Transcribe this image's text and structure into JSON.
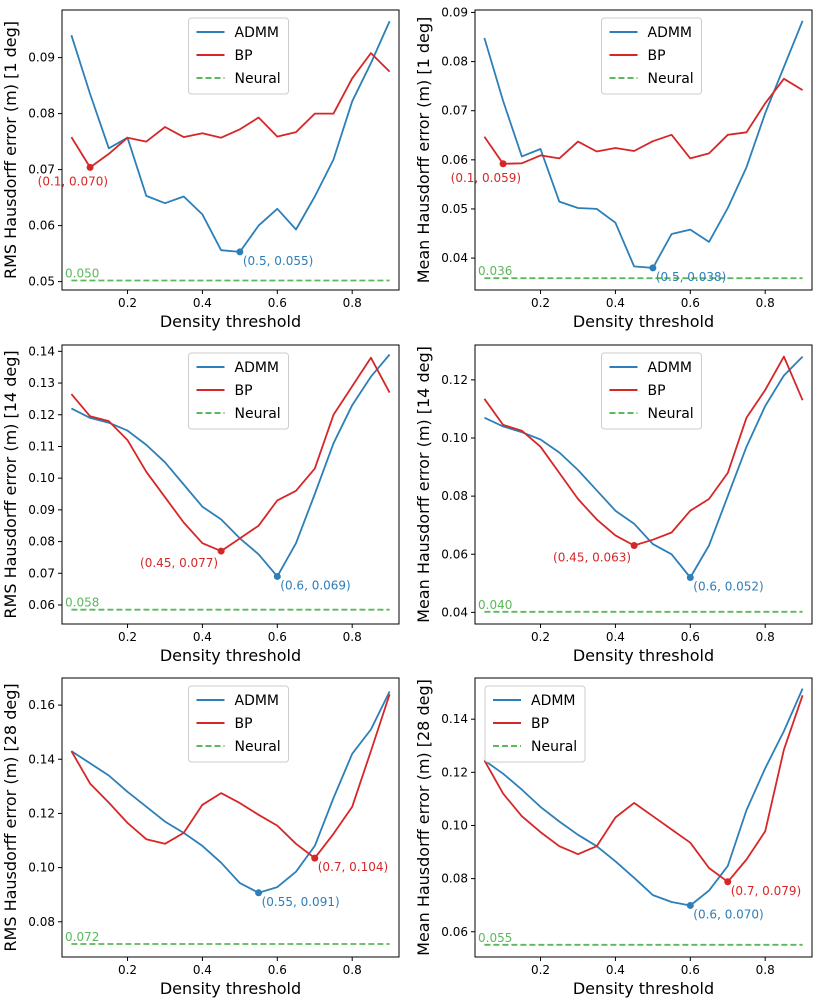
{
  "xlabel": "Density threshold",
  "colors": {
    "admm": "#2c7fb8",
    "bp": "#d62728",
    "neural": "#5cb85c"
  },
  "chart_data": [
    {
      "type": "line",
      "ylabel": "RMS Hausdorff error (m) [1 deg]",
      "xlim": [
        0.025,
        0.925
      ],
      "ylim": [
        0.0485,
        0.0985
      ],
      "xticks": [
        {
          "v": 0.2,
          "label": "0.2"
        },
        {
          "v": 0.4,
          "label": "0.4"
        },
        {
          "v": 0.6,
          "label": "0.6"
        },
        {
          "v": 0.8,
          "label": "0.8"
        }
      ],
      "yticks": [
        {
          "v": 0.05,
          "label": "0.05"
        },
        {
          "v": 0.06,
          "label": "0.06"
        },
        {
          "v": 0.07,
          "label": "0.07"
        },
        {
          "v": 0.08,
          "label": "0.08"
        },
        {
          "v": 0.09,
          "label": "0.09"
        }
      ],
      "legend_pos": "top-center",
      "x": [
        0.05,
        0.1,
        0.15,
        0.2,
        0.25,
        0.3,
        0.35,
        0.4,
        0.45,
        0.5,
        0.55,
        0.6,
        0.65,
        0.7,
        0.75,
        0.8,
        0.85,
        0.9
      ],
      "series": [
        {
          "name": "ADMM",
          "color_key": "admm",
          "values": [
            0.094,
            0.0835,
            0.0738,
            0.0757,
            0.0653,
            0.064,
            0.0652,
            0.062,
            0.0556,
            0.0553,
            0.06,
            0.063,
            0.0593,
            0.0652,
            0.0718,
            0.0822,
            0.089,
            0.0965
          ]
        },
        {
          "name": "BP",
          "color_key": "bp",
          "values": [
            0.0758,
            0.0704,
            0.0728,
            0.0757,
            0.075,
            0.0776,
            0.0758,
            0.0765,
            0.0757,
            0.0772,
            0.0793,
            0.0759,
            0.0767,
            0.08,
            0.08,
            0.0863,
            0.0908,
            0.0875
          ]
        },
        {
          "name": "Neural",
          "color_key": "neural",
          "dashed": true,
          "values": [
            0.0502,
            0.0502,
            0.0502,
            0.0502,
            0.0502,
            0.0502,
            0.0502,
            0.0502,
            0.0502,
            0.0502,
            0.0502,
            0.0502,
            0.0502,
            0.0502,
            0.0502,
            0.0502,
            0.0502,
            0.0502
          ]
        }
      ],
      "annotations": [
        {
          "series": "BP",
          "x": 0.1,
          "y": 0.0704,
          "label": "(0.1, 0.070)",
          "anchor": "below-left"
        },
        {
          "series": "ADMM",
          "x": 0.5,
          "y": 0.0553,
          "label": "(0.5, 0.055)",
          "anchor": "right-below"
        },
        {
          "series": "Neural",
          "x": 0.05,
          "y": 0.0502,
          "label": "0.050",
          "anchor": "above-left"
        }
      ]
    },
    {
      "type": "line",
      "ylabel": "Mean Hausdorff error (m) [1 deg]",
      "xlim": [
        0.025,
        0.925
      ],
      "ylim": [
        0.0335,
        0.0905
      ],
      "xticks": [
        {
          "v": 0.2,
          "label": "0.2"
        },
        {
          "v": 0.4,
          "label": "0.4"
        },
        {
          "v": 0.6,
          "label": "0.6"
        },
        {
          "v": 0.8,
          "label": "0.8"
        }
      ],
      "yticks": [
        {
          "v": 0.04,
          "label": "0.04"
        },
        {
          "v": 0.05,
          "label": "0.05"
        },
        {
          "v": 0.06,
          "label": "0.06"
        },
        {
          "v": 0.07,
          "label": "0.07"
        },
        {
          "v": 0.08,
          "label": "0.08"
        },
        {
          "v": 0.09,
          "label": "0.09"
        }
      ],
      "legend_pos": "top-center",
      "x": [
        0.05,
        0.1,
        0.15,
        0.2,
        0.25,
        0.3,
        0.35,
        0.4,
        0.45,
        0.5,
        0.55,
        0.6,
        0.65,
        0.7,
        0.75,
        0.8,
        0.85,
        0.9
      ],
      "series": [
        {
          "name": "ADMM",
          "color_key": "admm",
          "values": [
            0.0848,
            0.072,
            0.0607,
            0.0622,
            0.0515,
            0.0502,
            0.05,
            0.0472,
            0.0383,
            0.038,
            0.0449,
            0.0458,
            0.0433,
            0.0502,
            0.0585,
            0.0695,
            0.0789,
            0.0883
          ]
        },
        {
          "name": "BP",
          "color_key": "bp",
          "values": [
            0.0647,
            0.0592,
            0.0593,
            0.0609,
            0.0603,
            0.0637,
            0.0617,
            0.0624,
            0.0618,
            0.0638,
            0.0651,
            0.0603,
            0.0613,
            0.0651,
            0.0656,
            0.0715,
            0.0765,
            0.0742
          ]
        },
        {
          "name": "Neural",
          "color_key": "neural",
          "dashed": true,
          "values": [
            0.0359,
            0.0359,
            0.0359,
            0.0359,
            0.0359,
            0.0359,
            0.0359,
            0.0359,
            0.0359,
            0.0359,
            0.0359,
            0.0359,
            0.0359,
            0.0359,
            0.0359,
            0.0359,
            0.0359,
            0.0359
          ]
        }
      ],
      "annotations": [
        {
          "series": "BP",
          "x": 0.1,
          "y": 0.0592,
          "label": "(0.1, 0.059)",
          "anchor": "below-left"
        },
        {
          "series": "ADMM",
          "x": 0.5,
          "y": 0.038,
          "label": "(0.5, 0.038)",
          "anchor": "right-below"
        },
        {
          "series": "Neural",
          "x": 0.05,
          "y": 0.0359,
          "label": "0.036",
          "anchor": "above-left"
        }
      ]
    },
    {
      "type": "line",
      "ylabel": "RMS Hausdorff error (m) [14 deg]",
      "xlim": [
        0.025,
        0.925
      ],
      "ylim": [
        0.054,
        0.142
      ],
      "xticks": [
        {
          "v": 0.2,
          "label": "0.2"
        },
        {
          "v": 0.4,
          "label": "0.4"
        },
        {
          "v": 0.6,
          "label": "0.6"
        },
        {
          "v": 0.8,
          "label": "0.8"
        }
      ],
      "yticks": [
        {
          "v": 0.06,
          "label": "0.06"
        },
        {
          "v": 0.07,
          "label": "0.07"
        },
        {
          "v": 0.08,
          "label": "0.08"
        },
        {
          "v": 0.09,
          "label": "0.09"
        },
        {
          "v": 0.1,
          "label": "0.10"
        },
        {
          "v": 0.11,
          "label": "0.11"
        },
        {
          "v": 0.12,
          "label": "0.12"
        },
        {
          "v": 0.13,
          "label": "0.13"
        },
        {
          "v": 0.14,
          "label": "0.14"
        }
      ],
      "legend_pos": "top-center",
      "x": [
        0.05,
        0.1,
        0.15,
        0.2,
        0.25,
        0.3,
        0.35,
        0.4,
        0.45,
        0.5,
        0.55,
        0.6,
        0.65,
        0.7,
        0.75,
        0.8,
        0.85,
        0.9
      ],
      "series": [
        {
          "name": "ADMM",
          "color_key": "admm",
          "values": [
            0.122,
            0.119,
            0.1175,
            0.115,
            0.1105,
            0.105,
            0.098,
            0.091,
            0.087,
            0.081,
            0.076,
            0.069,
            0.0795,
            0.095,
            0.111,
            0.123,
            0.132,
            0.139
          ]
        },
        {
          "name": "BP",
          "color_key": "bp",
          "values": [
            0.1265,
            0.1195,
            0.118,
            0.112,
            0.102,
            0.094,
            0.086,
            0.0795,
            0.077,
            0.081,
            0.085,
            0.093,
            0.096,
            0.103,
            0.12,
            0.129,
            0.138,
            0.127
          ]
        },
        {
          "name": "Neural",
          "color_key": "neural",
          "dashed": true,
          "values": [
            0.0585,
            0.0585,
            0.0585,
            0.0585,
            0.0585,
            0.0585,
            0.0585,
            0.0585,
            0.0585,
            0.0585,
            0.0585,
            0.0585,
            0.0585,
            0.0585,
            0.0585,
            0.0585,
            0.0585,
            0.0585
          ]
        }
      ],
      "annotations": [
        {
          "series": "BP",
          "x": 0.45,
          "y": 0.077,
          "label": "(0.45, 0.077)",
          "anchor": "below-left"
        },
        {
          "series": "ADMM",
          "x": 0.6,
          "y": 0.069,
          "label": "(0.6, 0.069)",
          "anchor": "right-below"
        },
        {
          "series": "Neural",
          "x": 0.05,
          "y": 0.0585,
          "label": "0.058",
          "anchor": "above-left"
        }
      ]
    },
    {
      "type": "line",
      "ylabel": "Mean Hausdorff error (m) [14 deg]",
      "xlim": [
        0.025,
        0.925
      ],
      "ylim": [
        0.036,
        0.132
      ],
      "xticks": [
        {
          "v": 0.2,
          "label": "0.2"
        },
        {
          "v": 0.4,
          "label": "0.4"
        },
        {
          "v": 0.6,
          "label": "0.6"
        },
        {
          "v": 0.8,
          "label": "0.8"
        }
      ],
      "yticks": [
        {
          "v": 0.04,
          "label": "0.04"
        },
        {
          "v": 0.06,
          "label": "0.06"
        },
        {
          "v": 0.08,
          "label": "0.08"
        },
        {
          "v": 0.1,
          "label": "0.10"
        },
        {
          "v": 0.12,
          "label": "0.12"
        }
      ],
      "legend_pos": "top-center",
      "x": [
        0.05,
        0.1,
        0.15,
        0.2,
        0.25,
        0.3,
        0.35,
        0.4,
        0.45,
        0.5,
        0.55,
        0.6,
        0.65,
        0.7,
        0.75,
        0.8,
        0.85,
        0.9
      ],
      "series": [
        {
          "name": "ADMM",
          "color_key": "admm",
          "values": [
            0.107,
            0.104,
            0.102,
            0.0995,
            0.095,
            0.089,
            0.082,
            0.075,
            0.0705,
            0.0635,
            0.06,
            0.052,
            0.063,
            0.08,
            0.097,
            0.111,
            0.1215,
            0.128
          ]
        },
        {
          "name": "BP",
          "color_key": "bp",
          "values": [
            0.1135,
            0.1045,
            0.1025,
            0.097,
            0.088,
            0.079,
            0.072,
            0.0665,
            0.063,
            0.065,
            0.0675,
            0.075,
            0.079,
            0.088,
            0.107,
            0.1165,
            0.128,
            0.113
          ]
        },
        {
          "name": "Neural",
          "color_key": "neural",
          "dashed": true,
          "values": [
            0.0402,
            0.0402,
            0.0402,
            0.0402,
            0.0402,
            0.0402,
            0.0402,
            0.0402,
            0.0402,
            0.0402,
            0.0402,
            0.0402,
            0.0402,
            0.0402,
            0.0402,
            0.0402,
            0.0402,
            0.0402
          ]
        }
      ],
      "annotations": [
        {
          "series": "BP",
          "x": 0.45,
          "y": 0.063,
          "label": "(0.45, 0.063)",
          "anchor": "below-left"
        },
        {
          "series": "ADMM",
          "x": 0.6,
          "y": 0.052,
          "label": "(0.6, 0.052)",
          "anchor": "right-below"
        },
        {
          "series": "Neural",
          "x": 0.05,
          "y": 0.0402,
          "label": "0.040",
          "anchor": "above-left"
        }
      ]
    },
    {
      "type": "line",
      "ylabel": "RMS Hausdorff error (m) [28 deg]",
      "xlim": [
        0.025,
        0.925
      ],
      "ylim": [
        0.067,
        0.17
      ],
      "xticks": [
        {
          "v": 0.2,
          "label": "0.2"
        },
        {
          "v": 0.4,
          "label": "0.4"
        },
        {
          "v": 0.6,
          "label": "0.6"
        },
        {
          "v": 0.8,
          "label": "0.8"
        }
      ],
      "yticks": [
        {
          "v": 0.08,
          "label": "0.08"
        },
        {
          "v": 0.1,
          "label": "0.10"
        },
        {
          "v": 0.12,
          "label": "0.12"
        },
        {
          "v": 0.14,
          "label": "0.14"
        },
        {
          "v": 0.16,
          "label": "0.16"
        }
      ],
      "legend_pos": "top-center",
      "x": [
        0.05,
        0.1,
        0.15,
        0.2,
        0.25,
        0.3,
        0.35,
        0.4,
        0.45,
        0.5,
        0.55,
        0.6,
        0.65,
        0.7,
        0.75,
        0.8,
        0.85,
        0.9
      ],
      "series": [
        {
          "name": "ADMM",
          "color_key": "admm",
          "values": [
            0.143,
            0.1385,
            0.134,
            0.128,
            0.1225,
            0.117,
            0.1128,
            0.108,
            0.1018,
            0.0943,
            0.0907,
            0.0928,
            0.0985,
            0.108,
            0.1257,
            0.142,
            0.151,
            0.165
          ]
        },
        {
          "name": "BP",
          "color_key": "bp",
          "values": [
            0.143,
            0.131,
            0.124,
            0.1165,
            0.1105,
            0.1088,
            0.1128,
            0.1232,
            0.1275,
            0.1238,
            0.1195,
            0.1155,
            0.1088,
            0.1035,
            0.1125,
            0.1225,
            0.143,
            0.164
          ]
        },
        {
          "name": "Neural",
          "color_key": "neural",
          "dashed": true,
          "values": [
            0.0718,
            0.0718,
            0.0718,
            0.0718,
            0.0718,
            0.0718,
            0.0718,
            0.0718,
            0.0718,
            0.0718,
            0.0718,
            0.0718,
            0.0718,
            0.0718,
            0.0718,
            0.0718,
            0.0718,
            0.0718
          ]
        }
      ],
      "annotations": [
        {
          "series": "ADMM",
          "x": 0.55,
          "y": 0.0907,
          "label": "(0.55, 0.091)",
          "anchor": "right-below"
        },
        {
          "series": "BP",
          "x": 0.7,
          "y": 0.1035,
          "label": "(0.7, 0.104)",
          "anchor": "right-below"
        },
        {
          "series": "Neural",
          "x": 0.05,
          "y": 0.0718,
          "label": "0.072",
          "anchor": "above-left"
        }
      ]
    },
    {
      "type": "line",
      "ylabel": "Mean Hausdorff error (m) [28 deg]",
      "xlim": [
        0.025,
        0.925
      ],
      "ylim": [
        0.0505,
        0.1555
      ],
      "xticks": [
        {
          "v": 0.2,
          "label": "0.2"
        },
        {
          "v": 0.4,
          "label": "0.4"
        },
        {
          "v": 0.6,
          "label": "0.6"
        },
        {
          "v": 0.8,
          "label": "0.8"
        }
      ],
      "yticks": [
        {
          "v": 0.06,
          "label": "0.06"
        },
        {
          "v": 0.08,
          "label": "0.08"
        },
        {
          "v": 0.1,
          "label": "0.10"
        },
        {
          "v": 0.12,
          "label": "0.12"
        },
        {
          "v": 0.14,
          "label": "0.14"
        }
      ],
      "legend_pos": "top-left",
      "x": [
        0.05,
        0.1,
        0.15,
        0.2,
        0.25,
        0.3,
        0.35,
        0.4,
        0.45,
        0.5,
        0.55,
        0.6,
        0.65,
        0.7,
        0.75,
        0.8,
        0.85,
        0.9
      ],
      "series": [
        {
          "name": "ADMM",
          "color_key": "admm",
          "values": [
            0.1245,
            0.1195,
            0.1135,
            0.107,
            0.1015,
            0.0965,
            0.0922,
            0.0865,
            0.0803,
            0.0738,
            0.0712,
            0.0699,
            0.0755,
            0.0848,
            0.1058,
            0.1215,
            0.1355,
            0.1515
          ]
        },
        {
          "name": "BP",
          "color_key": "bp",
          "values": [
            0.1245,
            0.112,
            0.1035,
            0.0975,
            0.0922,
            0.0892,
            0.0922,
            0.103,
            0.1085,
            0.1035,
            0.0985,
            0.0935,
            0.084,
            0.0788,
            0.0872,
            0.0978,
            0.1285,
            0.149
          ]
        },
        {
          "name": "Neural",
          "color_key": "neural",
          "dashed": true,
          "values": [
            0.0551,
            0.0551,
            0.0551,
            0.0551,
            0.0551,
            0.0551,
            0.0551,
            0.0551,
            0.0551,
            0.0551,
            0.0551,
            0.0551,
            0.0551,
            0.0551,
            0.0551,
            0.0551,
            0.0551,
            0.0551
          ]
        }
      ],
      "annotations": [
        {
          "series": "ADMM",
          "x": 0.6,
          "y": 0.0699,
          "label": "(0.6, 0.070)",
          "anchor": "right-below"
        },
        {
          "series": "BP",
          "x": 0.7,
          "y": 0.0788,
          "label": "(0.7, 0.079)",
          "anchor": "right-below"
        },
        {
          "series": "Neural",
          "x": 0.05,
          "y": 0.0551,
          "label": "0.055",
          "anchor": "above-left"
        }
      ]
    }
  ]
}
